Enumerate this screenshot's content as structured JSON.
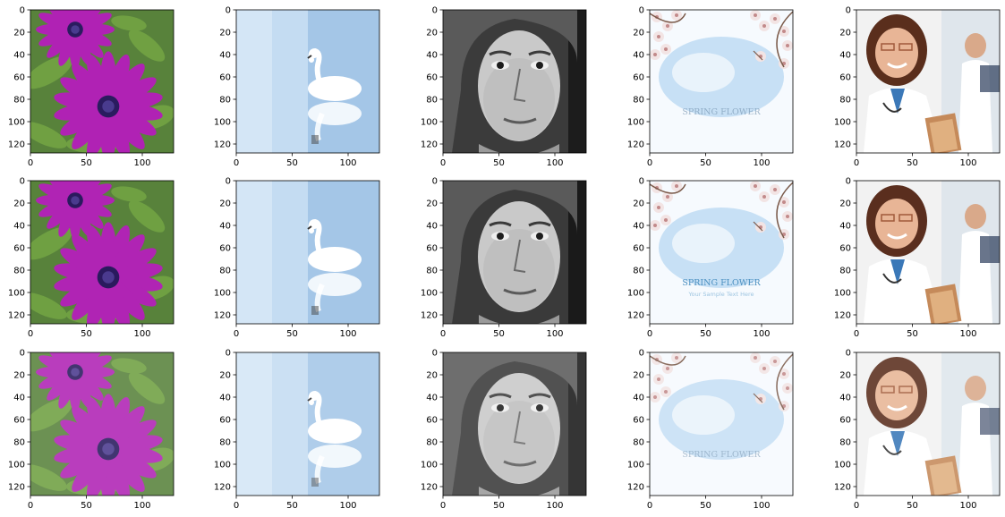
{
  "figure": {
    "rows": 3,
    "cols": 5,
    "row_roles": [
      "noisy",
      "clean",
      "denoised"
    ],
    "axis": {
      "xlim": [
        0,
        128
      ],
      "ylim": [
        128,
        0
      ],
      "xticks": [
        0,
        50,
        100
      ],
      "yticks": [
        0,
        20,
        40,
        60,
        80,
        100,
        120
      ],
      "xtick_labels": [
        "0",
        "50",
        "100"
      ],
      "ytick_labels": [
        "0",
        "20",
        "40",
        "60",
        "80",
        "100",
        "120"
      ]
    },
    "images": [
      {
        "col": 0,
        "subject": "purple daisy flowers with green leaves",
        "colors": [
          "#a020a0",
          "#3b6b2a"
        ]
      },
      {
        "col": 1,
        "subject": "white swan with reflection on blue water",
        "colors": [
          "#b6d2ee",
          "#ffffff"
        ]
      },
      {
        "col": 2,
        "subject": "grayscale portrait of a woman",
        "colors": [
          "#808080",
          "#202020"
        ]
      },
      {
        "col": 3,
        "subject": "spring blossoms with sky and text",
        "colors": [
          "#e8f2fb",
          "#c8a8a8"
        ],
        "caption": "SPRING FLOWER",
        "subcaption": "Your Sample Text Here"
      },
      {
        "col": 4,
        "subject": "smiling female doctor with clipboard",
        "colors": [
          "#f4f4f4",
          "#6b3a2a"
        ]
      }
    ]
  }
}
